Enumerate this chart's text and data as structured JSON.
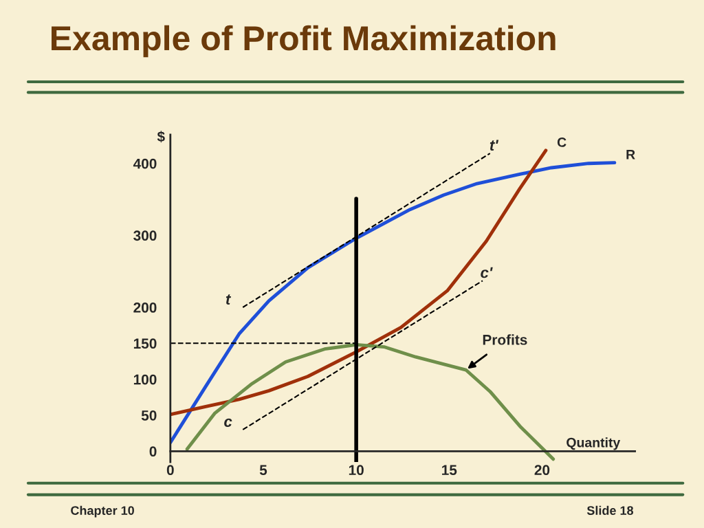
{
  "chart_data": {
    "type": "line",
    "title": "Example of Profit Maximization",
    "xlabel": "Quantity",
    "ylabel": "$",
    "xlim": [
      0,
      25
    ],
    "ylim": [
      -15,
      440
    ],
    "xticks": [
      0,
      5,
      10,
      15,
      20
    ],
    "yticks": [
      0,
      50,
      100,
      150,
      200,
      300,
      400
    ],
    "grid": false,
    "legend": false,
    "series": [
      {
        "name": "R",
        "color": "#1f4fd8",
        "x": [
          0,
          1.9,
          3.7,
          5.3,
          7.4,
          10,
          12.9,
          14.7,
          16.5,
          18.8,
          20.5,
          22.5,
          23.9
        ],
        "values": [
          12,
          90,
          163,
          209,
          255,
          296,
          336,
          356,
          372,
          385,
          394,
          400,
          401
        ]
      },
      {
        "name": "C",
        "color": "#a0300a",
        "x": [
          0,
          1.9,
          3.7,
          5.3,
          7.4,
          10,
          12.4,
          14.9,
          17,
          18.8,
          20.2
        ],
        "values": [
          51,
          62,
          72,
          84,
          104,
          138,
          172,
          223,
          292,
          365,
          418
        ]
      },
      {
        "color": "#6f8f4a",
        "x": [
          0.9,
          2.4,
          4.4,
          6.2,
          8.3,
          10,
          11.5,
          13.2,
          15.9,
          17.2,
          18.8,
          20.6
        ],
        "values": [
          3,
          53,
          94,
          124,
          142,
          148,
          145,
          131,
          113,
          83,
          35,
          -11
        ]
      },
      {
        "color": "#000000",
        "line_style": "dashed",
        "x": [
          3.9,
          17.2
        ],
        "values": [
          200,
          414
        ]
      },
      {
        "color": "#000000",
        "line_style": "dashed",
        "x": [
          3.9,
          16.8
        ],
        "values": [
          30,
          237
        ]
      },
      {
        "color": "#000000",
        "line_style": "dashed",
        "x": [
          0,
          10
        ],
        "values": [
          150,
          150
        ]
      },
      {
        "color": "#000000",
        "x": [
          10,
          10
        ],
        "values": [
          -15,
          351
        ]
      }
    ],
    "annotations": [
      {
        "text": "t",
        "x": 3.9,
        "y": 200
      },
      {
        "text": "t'",
        "x": 17.2,
        "y": 414
      },
      {
        "text": "c",
        "x": 3.9,
        "y": 30
      },
      {
        "text": "c'",
        "x": 16.8,
        "y": 237
      },
      {
        "text": "Profits",
        "x": 15.9,
        "y": 113
      },
      "Chapter 10",
      "Slide 18"
    ]
  }
}
